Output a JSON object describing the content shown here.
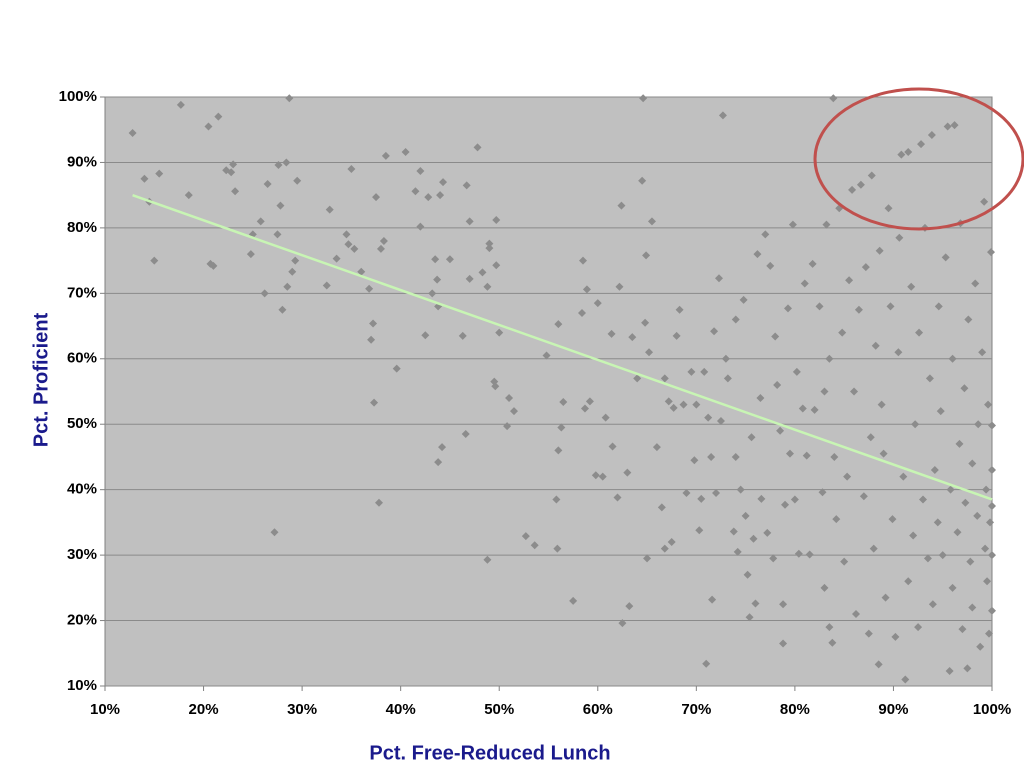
{
  "chart_data": {
    "type": "scatter",
    "xlabel": "Pct. Free-Reduced Lunch",
    "ylabel": "Pct. Proficient",
    "xlim": [
      10,
      100
    ],
    "ylim": [
      10,
      100
    ],
    "xticks": [
      {
        "value": 10,
        "label": "10%"
      },
      {
        "value": 20,
        "label": "20%"
      },
      {
        "value": 30,
        "label": "30%"
      },
      {
        "value": 40,
        "label": "40%"
      },
      {
        "value": 50,
        "label": "50%"
      },
      {
        "value": 60,
        "label": "60%"
      },
      {
        "value": 70,
        "label": "70%"
      },
      {
        "value": 80,
        "label": "80%"
      },
      {
        "value": 90,
        "label": "90%"
      },
      {
        "value": 100,
        "label": "100%"
      }
    ],
    "yticks": [
      {
        "value": 10,
        "label": "10%"
      },
      {
        "value": 20,
        "label": "20%"
      },
      {
        "value": 30,
        "label": "30%"
      },
      {
        "value": 40,
        "label": "40%"
      },
      {
        "value": 50,
        "label": "50%"
      },
      {
        "value": 60,
        "label": "60%"
      },
      {
        "value": 70,
        "label": "70%"
      },
      {
        "value": 80,
        "label": "80%"
      },
      {
        "value": 90,
        "label": "90%"
      },
      {
        "value": 100,
        "label": "100%"
      }
    ],
    "grid": true,
    "series": [
      {
        "color": "#8c8c8c",
        "x": [
          12.8,
          14,
          14.5,
          15,
          15.5,
          17.7,
          18.5,
          20.5,
          20.7,
          21,
          21.5,
          22.3,
          22.8,
          23,
          23.2,
          24.8,
          25,
          25.8,
          26.2,
          26.5,
          27.2,
          27.5,
          27.6,
          27.8,
          28,
          28.4,
          28.5,
          28.7,
          29,
          29.3,
          29.5,
          32.5,
          32.8,
          33.5,
          34.5,
          34.7,
          35,
          35.3,
          36,
          36.8,
          37,
          37.2,
          37.3,
          37.5,
          37.8,
          38,
          38.3,
          38.5,
          39.6,
          40.5,
          41.5,
          42,
          42,
          42.5,
          42.8,
          43.2,
          43.5,
          43.7,
          43.8,
          43.8,
          44,
          44.2,
          44.3,
          45,
          46.3,
          46.6,
          46.7,
          47,
          47,
          47.8,
          48.3,
          48.8,
          48.8,
          49,
          49,
          49.5,
          49.6,
          49.7,
          49.7,
          50,
          50.8,
          51,
          51.5,
          52.7,
          53.6,
          54.8,
          55.8,
          55.9,
          56,
          56,
          56.3,
          56.5,
          57.5,
          58.4,
          58.5,
          58.7,
          58.9,
          59.2,
          59.8,
          60,
          60.5,
          60.8,
          61.4,
          61.5,
          62,
          62.2,
          62.4,
          62.5,
          63,
          63.2,
          63.5,
          64,
          64.5,
          64.6,
          64.8,
          64.9,
          65,
          65.2,
          65.5,
          66,
          66.5,
          66.8,
          66.8,
          67.2,
          67.5,
          67.7,
          68,
          68.3,
          68.7,
          69,
          69.5,
          69.8,
          70,
          70.3,
          70.5,
          70.8,
          71,
          71.2,
          71.5,
          71.6,
          71.8,
          72,
          72.3,
          72.5,
          72.7,
          73,
          73.2,
          73.8,
          74,
          74,
          74.2,
          74.5,
          74.8,
          75,
          75.2,
          75.4,
          75.6,
          75.8,
          76,
          76.2,
          76.5,
          76.6,
          77,
          77.2,
          77.5,
          77.8,
          78,
          78.2,
          78.5,
          78.8,
          78.8,
          79,
          79.3,
          79.5,
          79.8,
          80,
          80.2,
          80.4,
          80.8,
          81,
          81.2,
          81.5,
          81.8,
          82,
          82.5,
          82.8,
          83,
          83,
          83.2,
          83.5,
          83.5,
          83.8,
          83.9,
          84,
          84.2,
          84.5,
          84.8,
          85,
          85.3,
          85.5,
          85.8,
          86,
          86.2,
          86.5,
          86.7,
          87,
          87.2,
          87.5,
          87.7,
          87.8,
          88,
          88.2,
          88.5,
          88.6,
          88.8,
          89,
          89.2,
          89.5,
          89.7,
          89.9,
          90.2,
          90.5,
          90.6,
          90.8,
          91,
          91.2,
          91.5,
          91.5,
          91.8,
          92,
          92.2,
          92.5,
          92.6,
          92.8,
          93,
          93.2,
          93.5,
          93.7,
          93.9,
          94,
          94.2,
          94.5,
          94.6,
          94.8,
          95,
          95.3,
          95.5,
          95.7,
          95.8,
          96,
          96,
          96.2,
          96.5,
          96.7,
          96.8,
          97,
          97.2,
          97.3,
          97.5,
          97.6,
          97.8,
          98,
          98,
          98.3,
          98.5,
          98.6,
          98.8,
          99,
          99.2,
          99.3,
          99.4,
          99.5,
          99.6,
          99.7,
          99.8,
          99.9,
          100,
          100,
          100,
          100,
          100
        ],
        "values": [
          94.5,
          87.5,
          84,
          75,
          88.3,
          98.8,
          85,
          95.5,
          74.5,
          74.2,
          97,
          88.8,
          88.5,
          89.7,
          85.6,
          76,
          79,
          81,
          70,
          86.7,
          33.5,
          79,
          89.6,
          83.4,
          67.5,
          90,
          71,
          99.8,
          73.3,
          75,
          87.2,
          71.2,
          82.8,
          75.3,
          79,
          77.5,
          89,
          76.8,
          73.3,
          70.7,
          62.9,
          65.4,
          53.3,
          84.7,
          38,
          76.8,
          78,
          91,
          58.5,
          91.6,
          85.6,
          88.7,
          80.2,
          63.6,
          84.7,
          70,
          75.2,
          72.1,
          68,
          44.2,
          85,
          46.5,
          87,
          75.2,
          63.5,
          48.5,
          86.5,
          72.2,
          81,
          92.3,
          73.2,
          29.3,
          71,
          76.9,
          77.6,
          56.5,
          55.8,
          74.3,
          81.2,
          64,
          49.7,
          54,
          52,
          32.9,
          31.5,
          60.5,
          38.5,
          31,
          65.3,
          46,
          49.5,
          53.4,
          23,
          67,
          75,
          52.4,
          70.6,
          53.5,
          42.2,
          68.5,
          42,
          51,
          63.8,
          46.6,
          38.8,
          71,
          83.4,
          19.6,
          42.6,
          22.2,
          63.3,
          57,
          87.2,
          99.8,
          65.5,
          75.8,
          29.5,
          61,
          81,
          46.5,
          37.3,
          57,
          31,
          53.5,
          32,
          52.5,
          63.5,
          67.5,
          53,
          39.5,
          58,
          44.5,
          53,
          33.8,
          38.6,
          58,
          13.4,
          51,
          45,
          23.2,
          64.2,
          39.5,
          72.3,
          50.5,
          97.2,
          60,
          57,
          33.6,
          66,
          45,
          30.5,
          40,
          69,
          36,
          27,
          20.5,
          48,
          32.5,
          22.6,
          76,
          54,
          38.6,
          79,
          33.4,
          74.2,
          29.5,
          63.4,
          56,
          49,
          22.5,
          16.5,
          37.7,
          67.7,
          45.5,
          80.5,
          38.5,
          58,
          30.2,
          52.4,
          71.5,
          45.2,
          30.1,
          74.5,
          52.2,
          68,
          39.6,
          55,
          25,
          80.5,
          60,
          19,
          16.6,
          99.8,
          45,
          35.5,
          83,
          64,
          29,
          42,
          72,
          85.8,
          55,
          21,
          67.5,
          86.6,
          39,
          74,
          18,
          48,
          88,
          31,
          62,
          13.3,
          76.5,
          53,
          45.5,
          23.5,
          83,
          68,
          35.5,
          17.5,
          61,
          78.5,
          91.2,
          42,
          11,
          26,
          91.6,
          71,
          33,
          50,
          19,
          64,
          92.8,
          38.5,
          80,
          29.5,
          57,
          94.2,
          22.5,
          43,
          35,
          68,
          52,
          30,
          75.5,
          95.5,
          12.3,
          40,
          60,
          25,
          95.7,
          33.5,
          47,
          80.7,
          18.7,
          55.5,
          38,
          12.7,
          66,
          29,
          44,
          22,
          71.5,
          36,
          50,
          16,
          61,
          84,
          31,
          40,
          26,
          53,
          18,
          35,
          76.3,
          49.8,
          43,
          21.5,
          30,
          37.5
        ]
      }
    ],
    "trendline": {
      "color": "#c8f5b4",
      "x": [
        12.8,
        100
      ],
      "values": [
        85,
        38.5
      ]
    }
  }
}
